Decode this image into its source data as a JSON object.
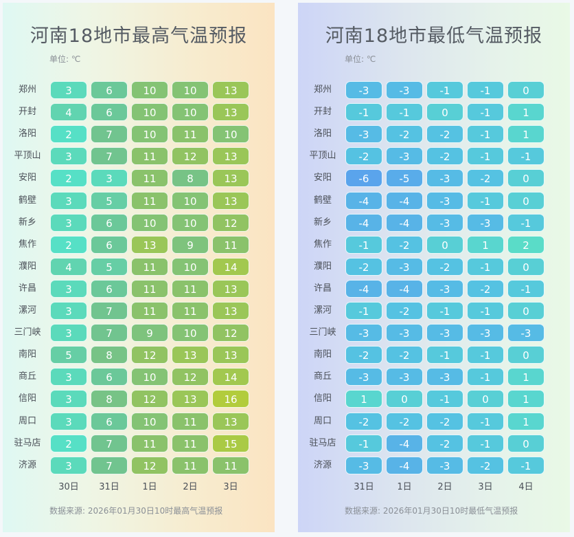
{
  "chart_data": [
    {
      "type": "heatmap",
      "title": "河南18地市最高气温预报",
      "unit_label": "单位: ℃",
      "x": [
        "30日",
        "31日",
        "1日",
        "2日",
        "3日"
      ],
      "y": [
        "郑州",
        "开封",
        "洛阳",
        "平顶山",
        "安阳",
        "鹤壁",
        "新乡",
        "焦作",
        "濮阳",
        "许昌",
        "漯河",
        "三门峡",
        "南阳",
        "商丘",
        "信阳",
        "周口",
        "驻马店",
        "济源"
      ],
      "values": [
        [
          3,
          6,
          10,
          10,
          13
        ],
        [
          4,
          6,
          10,
          10,
          13
        ],
        [
          2,
          7,
          10,
          11,
          10
        ],
        [
          3,
          7,
          11,
          12,
          13
        ],
        [
          2,
          3,
          11,
          8,
          13
        ],
        [
          3,
          5,
          11,
          10,
          13
        ],
        [
          3,
          6,
          10,
          10,
          12
        ],
        [
          2,
          6,
          13,
          9,
          11
        ],
        [
          4,
          5,
          11,
          10,
          14
        ],
        [
          3,
          6,
          11,
          11,
          13
        ],
        [
          3,
          7,
          11,
          11,
          13
        ],
        [
          3,
          7,
          9,
          10,
          12
        ],
        [
          5,
          8,
          12,
          13,
          13
        ],
        [
          3,
          6,
          10,
          12,
          14
        ],
        [
          3,
          8,
          12,
          13,
          16
        ],
        [
          3,
          6,
          10,
          11,
          13
        ],
        [
          2,
          7,
          11,
          11,
          15
        ],
        [
          3,
          7,
          12,
          11,
          11
        ]
      ],
      "source": "数据来源: 2026年01月30日10时最高气温预报"
    },
    {
      "type": "heatmap",
      "title": "河南18地市最低气温预报",
      "unit_label": "单位: ℃",
      "x": [
        "31日",
        "1日",
        "2日",
        "3日",
        "4日"
      ],
      "y": [
        "郑州",
        "开封",
        "洛阳",
        "平顶山",
        "安阳",
        "鹤壁",
        "新乡",
        "焦作",
        "濮阳",
        "许昌",
        "漯河",
        "三门峡",
        "南阳",
        "商丘",
        "信阳",
        "周口",
        "驻马店",
        "济源"
      ],
      "values": [
        [
          -3,
          -3,
          -1,
          -1,
          0
        ],
        [
          -1,
          -1,
          0,
          -1,
          1
        ],
        [
          -3,
          -2,
          -2,
          -1,
          1
        ],
        [
          -2,
          -3,
          -2,
          -1,
          -1
        ],
        [
          -6,
          -5,
          -3,
          -2,
          0
        ],
        [
          -4,
          -4,
          -3,
          -1,
          0
        ],
        [
          -4,
          -4,
          -3,
          -3,
          -1
        ],
        [
          -1,
          -2,
          0,
          1,
          2
        ],
        [
          -2,
          -3,
          -2,
          -1,
          0
        ],
        [
          -4,
          -4,
          -3,
          -2,
          -1
        ],
        [
          -1,
          -2,
          -1,
          -1,
          0
        ],
        [
          -3,
          -3,
          -3,
          -3,
          -3
        ],
        [
          -2,
          -2,
          -1,
          -1,
          0
        ],
        [
          -3,
          -3,
          -3,
          -1,
          1
        ],
        [
          1,
          0,
          -1,
          0,
          1
        ],
        [
          -2,
          -2,
          -2,
          -1,
          1
        ],
        [
          -1,
          -4,
          -2,
          -1,
          0
        ],
        [
          -3,
          -4,
          -3,
          -2,
          -1
        ]
      ],
      "source": "数据来源: 2026年01月30日10时最低气温预报"
    }
  ],
  "colors": {
    "high_scale": [
      "#56e0c6",
      "#6fc492",
      "#8cc268",
      "#b2cc3c"
    ],
    "low_scale": [
      "#5aa4ec",
      "#55c2e2",
      "#5adcc8"
    ]
  }
}
